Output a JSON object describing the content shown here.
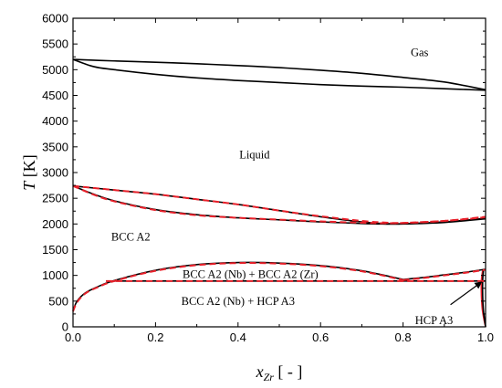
{
  "chart_data": {
    "type": "line",
    "xlabel": "x",
    "xlabel_sub": "Zr",
    "xlabel_suffix": " [ - ]",
    "ylabel": "T",
    "ylabel_suffix": " [K]",
    "xlim": [
      0.0,
      1.0
    ],
    "ylim": [
      0,
      6000
    ],
    "xticks": [
      0.0,
      0.2,
      0.4,
      0.6,
      0.8,
      1.0
    ],
    "xtick_labels": [
      "0.0",
      "0.2",
      "0.4",
      "0.6",
      "0.8",
      "1.0"
    ],
    "yticks": [
      0,
      500,
      1000,
      1500,
      2000,
      2500,
      3000,
      3500,
      4000,
      4500,
      5000,
      5500,
      6000
    ],
    "ytick_labels": [
      "0",
      "500",
      "1000",
      "1500",
      "2000",
      "2500",
      "3000",
      "3500",
      "4000",
      "4500",
      "5000",
      "5500",
      "6000"
    ],
    "grid": false,
    "colors": {
      "calculated": "#000000",
      "reference": "#e8202a"
    },
    "region_labels": [
      {
        "text": "Gas",
        "x": 0.84,
        "y": 5330
      },
      {
        "text": "Liquid",
        "x": 0.44,
        "y": 3350
      },
      {
        "text": "BCC A2",
        "x": 0.14,
        "y": 1750
      },
      {
        "text": "BCC A2 (Nb) + BCC A2 (Zr)",
        "x": 0.43,
        "y": 1020
      },
      {
        "text": "BCC A2 (Nb) + HCP A3",
        "x": 0.4,
        "y": 500
      },
      {
        "text": "HCP A3",
        "x": 0.875,
        "y": 120
      }
    ],
    "arrow": {
      "from": [
        0.915,
        430
      ],
      "to": [
        0.99,
        870
      ]
    },
    "series": [
      {
        "style": "solid",
        "color": "#000000",
        "x": [
          0.0,
          0.1,
          0.2,
          0.3,
          0.4,
          0.5,
          0.6,
          0.7,
          0.8,
          0.9,
          1.0
        ],
        "y": [
          5200,
          5170,
          5145,
          5115,
          5080,
          5040,
          4990,
          4930,
          4850,
          4760,
          4610
        ]
      },
      {
        "style": "solid",
        "color": "#000000",
        "x": [
          0.0,
          0.05,
          0.1,
          0.2,
          0.3,
          0.4,
          0.5,
          0.6,
          0.7,
          0.8,
          0.9,
          1.0
        ],
        "y": [
          5200,
          5060,
          5000,
          4910,
          4840,
          4790,
          4750,
          4710,
          4680,
          4660,
          4630,
          4600
        ]
      },
      {
        "style": "solid",
        "color": "#000000",
        "x": [
          0.0,
          0.1,
          0.2,
          0.3,
          0.4,
          0.5,
          0.6,
          0.7,
          0.75,
          0.8,
          0.9,
          1.0
        ],
        "y": [
          2740,
          2660,
          2580,
          2480,
          2380,
          2260,
          2140,
          2040,
          2010,
          2005,
          2040,
          2110
        ]
      },
      {
        "style": "solid",
        "color": "#000000",
        "x": [
          0.0,
          0.05,
          0.1,
          0.2,
          0.3,
          0.4,
          0.5,
          0.6,
          0.7,
          0.75,
          0.8,
          0.9,
          1.0
        ],
        "y": [
          2740,
          2580,
          2450,
          2280,
          2180,
          2120,
          2080,
          2040,
          2010,
          2000,
          2000,
          2030,
          2100
        ]
      },
      {
        "style": "dashed",
        "color": "#e8202a",
        "x": [
          0.0,
          0.1,
          0.2,
          0.3,
          0.4,
          0.5,
          0.6,
          0.7,
          0.75,
          0.8,
          0.9,
          1.0
        ],
        "y": [
          2740,
          2660,
          2580,
          2480,
          2380,
          2260,
          2150,
          2060,
          2030,
          2020,
          2060,
          2140
        ]
      },
      {
        "style": "dashed",
        "color": "#e8202a",
        "x": [
          0.0,
          0.05,
          0.1,
          0.2,
          0.3,
          0.4,
          0.5,
          0.6,
          0.7,
          0.75,
          0.8,
          0.9,
          1.0
        ],
        "y": [
          2740,
          2570,
          2440,
          2270,
          2170,
          2120,
          2085,
          2050,
          2025,
          2015,
          2020,
          2060,
          2130
        ]
      },
      {
        "style": "solid",
        "color": "#000000",
        "x": [
          0.0,
          0.01,
          0.03,
          0.06,
          0.1,
          0.2,
          0.3,
          0.4,
          0.5,
          0.6,
          0.7,
          0.8
        ],
        "y": [
          320,
          500,
          660,
          780,
          900,
          1100,
          1210,
          1250,
          1240,
          1190,
          1090,
          920
        ]
      },
      {
        "style": "dashed",
        "color": "#e8202a",
        "x": [
          0.0,
          0.01,
          0.03,
          0.06,
          0.1,
          0.2,
          0.3,
          0.4,
          0.5,
          0.6,
          0.7,
          0.8
        ],
        "y": [
          300,
          480,
          650,
          770,
          890,
          1090,
          1200,
          1240,
          1230,
          1180,
          1080,
          910
        ]
      },
      {
        "style": "solid",
        "color": "#000000",
        "x": [
          0.8,
          0.85,
          0.9,
          0.95,
          1.0
        ],
        "y": [
          920,
          960,
          1010,
          1060,
          1120
        ]
      },
      {
        "style": "dashed",
        "color": "#e8202a",
        "x": [
          0.8,
          0.85,
          0.9,
          0.95,
          1.0
        ],
        "y": [
          910,
          950,
          1000,
          1050,
          1110
        ]
      },
      {
        "style": "solid",
        "color": "#000000",
        "x": [
          0.08,
          1.0
        ],
        "y": [
          890,
          890
        ]
      },
      {
        "style": "dashed",
        "color": "#e8202a",
        "x": [
          0.08,
          1.0
        ],
        "y": [
          890,
          890
        ]
      },
      {
        "style": "solid",
        "color": "#e8202a",
        "x": [
          0.993,
          0.99,
          0.99,
          0.992,
          0.996,
          1.0
        ],
        "y": [
          1100,
          900,
          600,
          350,
          150,
          0
        ]
      },
      {
        "style": "solid",
        "color": "#000000",
        "x": [
          0.995,
          0.993,
          0.993,
          0.995,
          1.0
        ],
        "y": [
          1110,
          900,
          600,
          300,
          0
        ]
      }
    ]
  }
}
